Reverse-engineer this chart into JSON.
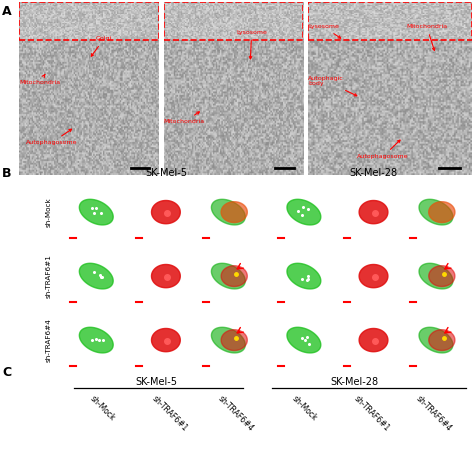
{
  "panel_A_label": "A",
  "panel_B_label": "B",
  "panel_C_label": "C",
  "skmel5_label": "SK-Mel-5",
  "skmel28_label": "SK-Mel-28",
  "row_labels": [
    "sh-Mock",
    "sh-TRAF6#1",
    "sh-TRAF6#4"
  ],
  "col_labels_C": [
    "sh-Mock",
    "sh-TRAF6#1",
    "sh-TRAF6#4",
    "sh-Mock",
    "sh-TRAF6#1",
    "sh-TRAF6#4"
  ],
  "bg_color": "#ffffff",
  "fluor_bg": "#000000"
}
